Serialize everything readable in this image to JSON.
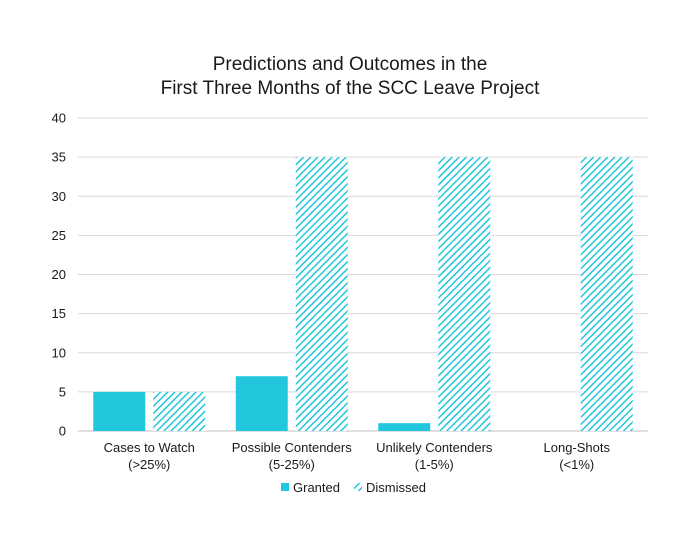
{
  "chart_data": {
    "type": "bar",
    "title": [
      "Predictions and Outcomes in the",
      "First Three Months of the SCC Leave Project"
    ],
    "xlabel": "",
    "ylabel": "",
    "categories": [
      [
        "Cases to Watch",
        "(>25%)"
      ],
      [
        "Possible Contenders",
        "(5-25%)"
      ],
      [
        "Unlikely Contenders",
        "(1-5%)"
      ],
      [
        "Long-Shots",
        "(<1%)"
      ]
    ],
    "series": [
      {
        "name": "Granted",
        "values": [
          5,
          7,
          1,
          0
        ],
        "color": "#22c7de",
        "fill": "solid"
      },
      {
        "name": "Dismissed",
        "values": [
          5,
          35,
          35,
          35
        ],
        "color": "#22c7de",
        "fill": "diagonal-hatch"
      }
    ],
    "ylim": [
      0,
      40
    ],
    "yticks": [
      0,
      5,
      10,
      15,
      20,
      25,
      30,
      35,
      40
    ],
    "grid": true,
    "legend": "bottom-center"
  }
}
